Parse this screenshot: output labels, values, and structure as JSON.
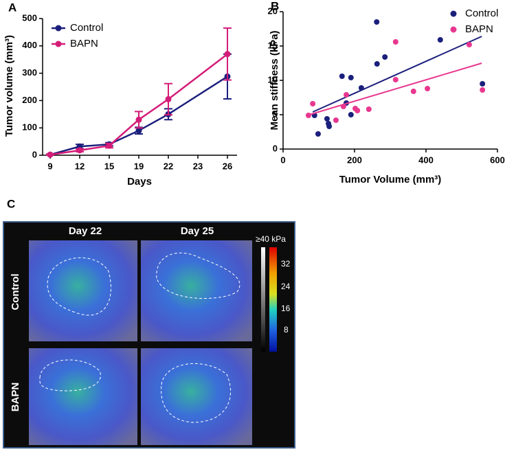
{
  "chart_data": [
    {
      "type": "line",
      "panel_label": "A",
      "x_label": "Days",
      "y_label": "Tumor volume (mm³)",
      "x": [
        9,
        12,
        15,
        19,
        22,
        26
      ],
      "xlim": [
        9,
        26
      ],
      "xticks": [
        9,
        12,
        15,
        19,
        22,
        23,
        26
      ],
      "ylim": [
        0,
        500
      ],
      "yticks": [
        0,
        100,
        200,
        300,
        400,
        500
      ],
      "series": [
        {
          "name": "Control",
          "color": "#1b1f7c",
          "values": [
            2,
            32,
            40,
            90,
            150,
            288
          ],
          "errors": [
            2,
            8,
            6,
            12,
            20,
            82
          ]
        },
        {
          "name": "BAPN",
          "color": "#d41c78",
          "values": [
            2,
            18,
            35,
            130,
            205,
            370
          ],
          "errors": [
            2,
            5,
            8,
            30,
            57,
            95
          ]
        }
      ]
    },
    {
      "type": "scatter",
      "panel_label": "B",
      "x_label": "Tumor Volume (mm³)",
      "y_label": "Mean stiffness (kPa)",
      "xlim": [
        0,
        600
      ],
      "xticks": [
        0,
        200,
        400,
        600
      ],
      "ylim": [
        0,
        20
      ],
      "yticks": [
        0,
        5,
        10,
        15,
        20
      ],
      "series": [
        {
          "name": "Control",
          "color": "#1b1f7c",
          "x": [
            88,
            98,
            123,
            127,
            129,
            165,
            177,
            190,
            190,
            219,
            262,
            263,
            285,
            440,
            558
          ],
          "values": [
            4.9,
            2.2,
            4.4,
            3.7,
            3.3,
            10.6,
            6.7,
            10.4,
            5.0,
            8.9,
            18.5,
            12.4,
            13.4,
            15.9,
            9.5
          ],
          "trend_x": [
            83,
            556
          ],
          "trend_values": [
            5.4,
            16.4
          ]
        },
        {
          "name": "BAPN",
          "color": "#e8378f",
          "x": [
            71,
            83,
            148,
            169,
            177,
            202,
            208,
            240,
            315,
            315,
            365,
            404,
            521,
            558
          ],
          "values": [
            4.9,
            6.6,
            4.2,
            6.2,
            7.9,
            5.9,
            5.6,
            5.8,
            15.6,
            10.1,
            8.4,
            8.8,
            15.2,
            8.6
          ],
          "trend_x": [
            67,
            556
          ],
          "trend_values": [
            4.9,
            12.5
          ]
        }
      ]
    }
  ],
  "image_panel": {
    "label": "C",
    "columns": [
      "Day 22",
      "Day 25"
    ],
    "rows": [
      "Control",
      "BAPN"
    ],
    "colorbar": {
      "title": "≥40 kPa",
      "ticks": [
        32,
        24,
        16,
        8
      ]
    }
  }
}
